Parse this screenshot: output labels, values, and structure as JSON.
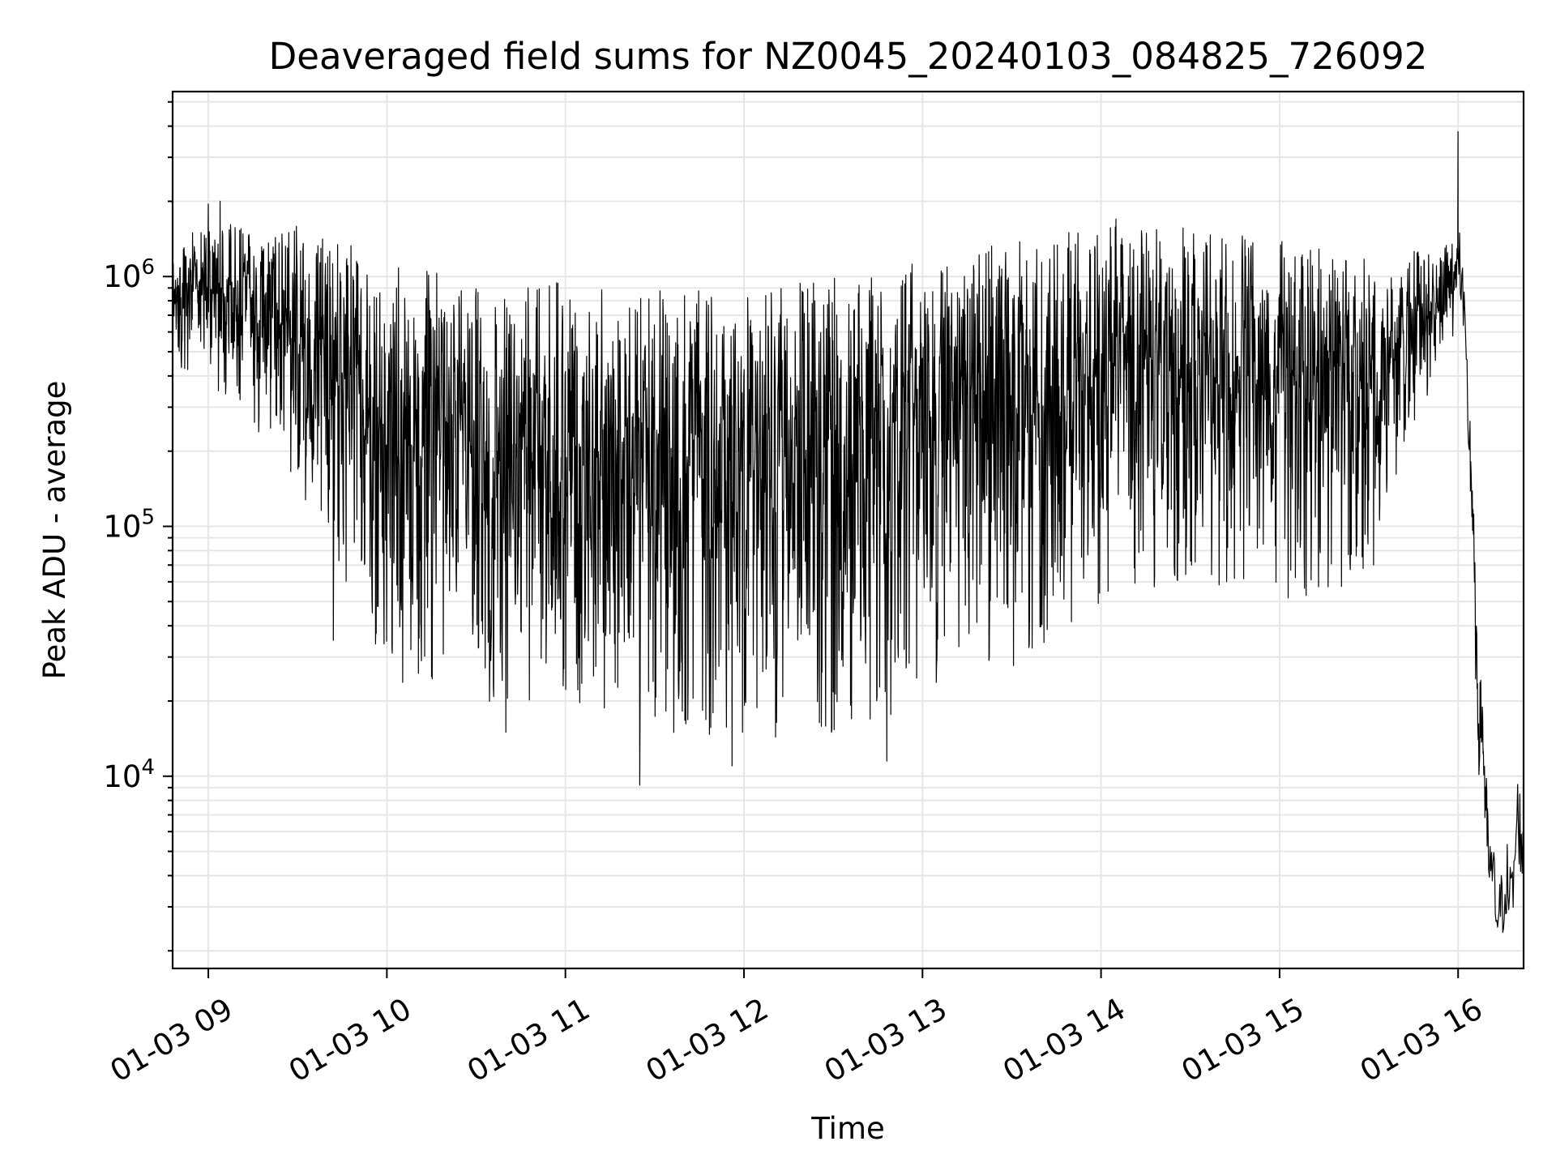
{
  "chart_data": {
    "type": "line",
    "title": "Deaveraged field sums for NZ0045_20240103_084825_726092",
    "xlabel": "Time",
    "ylabel": "Peak ADU - average",
    "yscale": "log",
    "ylim": [
      1700,
      5500000
    ],
    "xlim": [
      "2024-01-03 08:48",
      "2024-01-03 16:22"
    ],
    "grid": true,
    "x_ticks": [
      "01-03 09",
      "01-03 10",
      "01-03 11",
      "01-03 12",
      "01-03 13",
      "01-03 14",
      "01-03 15",
      "01-03 16"
    ],
    "y_ticks": [
      {
        "base": "10",
        "exp": "4",
        "value": 10000
      },
      {
        "base": "10",
        "exp": "5",
        "value": 100000
      },
      {
        "base": "10",
        "exp": "6",
        "value": 1000000
      }
    ],
    "line_color": "#000000",
    "envelope": [
      {
        "time": "2024-01-03 08:48",
        "low": 400000,
        "high": 1200000
      },
      {
        "time": "2024-01-03 09:00",
        "low": 380000,
        "high": 1800000
      },
      {
        "time": "2024-01-03 09:15",
        "low": 250000,
        "high": 1500000
      },
      {
        "time": "2024-01-03 09:30",
        "low": 150000,
        "high": 1600000
      },
      {
        "time": "2024-01-03 09:45",
        "low": 60000,
        "high": 1400000
      },
      {
        "time": "2024-01-03 10:00",
        "low": 25000,
        "high": 1100000
      },
      {
        "time": "2024-01-03 10:30",
        "low": 18000,
        "high": 1000000
      },
      {
        "time": "2024-01-03 11:00",
        "low": 20000,
        "high": 950000
      },
      {
        "time": "2024-01-03 11:30",
        "low": 15000,
        "high": 900000
      },
      {
        "time": "2024-01-03 12:00",
        "low": 14000,
        "high": 950000
      },
      {
        "time": "2024-01-03 12:30",
        "low": 14000,
        "high": 1000000
      },
      {
        "time": "2024-01-03 13:00",
        "low": 20000,
        "high": 1200000
      },
      {
        "time": "2024-01-03 13:30",
        "low": 25000,
        "high": 1400000
      },
      {
        "time": "2024-01-03 14:00",
        "low": 50000,
        "high": 1600000
      },
      {
        "time": "2024-01-03 14:30",
        "low": 60000,
        "high": 1600000
      },
      {
        "time": "2024-01-03 15:00",
        "low": 50000,
        "high": 1400000
      },
      {
        "time": "2024-01-03 15:30",
        "low": 60000,
        "high": 1200000
      },
      {
        "time": "2024-01-03 15:45",
        "low": 250000,
        "high": 1300000
      },
      {
        "time": "2024-01-03 16:00",
        "low": 600000,
        "high": 1400000
      }
    ],
    "spikes": [
      {
        "time": "2024-01-03 09:00",
        "value": 1950000
      },
      {
        "time": "2024-01-03 09:04",
        "value": 2000000
      },
      {
        "time": "2024-01-03 09:42",
        "value": 35000
      },
      {
        "time": "2024-01-03 10:40",
        "value": 15000
      },
      {
        "time": "2024-01-03 11:25",
        "value": 9200
      },
      {
        "time": "2024-01-03 11:56",
        "value": 11000
      },
      {
        "time": "2024-01-03 12:48",
        "value": 11500
      },
      {
        "time": "2024-01-03 14:05",
        "value": 1700000
      },
      {
        "time": "2024-01-03 16:00",
        "value": 3800000
      }
    ],
    "tail": [
      {
        "time": "2024-01-03 16:00",
        "value": 1300000
      },
      {
        "time": "2024-01-03 16:02",
        "value": 600000
      },
      {
        "time": "2024-01-03 16:04",
        "value": 200000
      },
      {
        "time": "2024-01-03 16:05",
        "value": 110000
      },
      {
        "time": "2024-01-03 16:06",
        "value": 30000
      },
      {
        "time": "2024-01-03 16:07",
        "value": 15000
      },
      {
        "time": "2024-01-03 16:08",
        "value": 18000
      },
      {
        "time": "2024-01-03 16:09",
        "value": 9000
      },
      {
        "time": "2024-01-03 16:10",
        "value": 5000
      },
      {
        "time": "2024-01-03 16:12",
        "value": 3500
      },
      {
        "time": "2024-01-03 16:14",
        "value": 2600
      },
      {
        "time": "2024-01-03 16:16",
        "value": 4000
      },
      {
        "time": "2024-01-03 16:18",
        "value": 3000
      },
      {
        "time": "2024-01-03 16:20",
        "value": 7000
      },
      {
        "time": "2024-01-03 16:22",
        "value": 5000
      }
    ]
  }
}
